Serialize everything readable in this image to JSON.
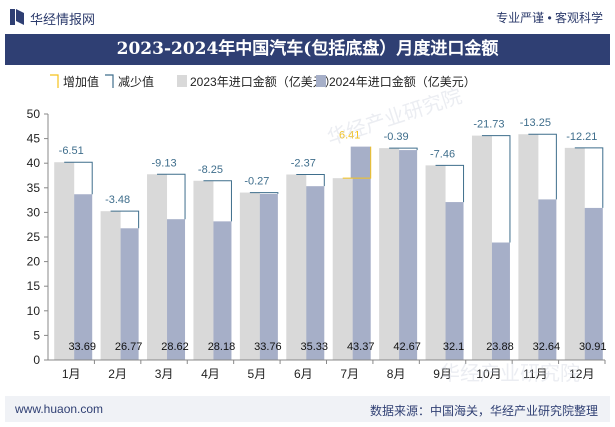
{
  "header": {
    "brand": "华经情报网",
    "tagline": "专业严谨 • 客观科学",
    "title": "2023-2024年中国汽车(包括底盘）月度进口金额"
  },
  "footer": {
    "url": "www.huaon.com",
    "source": "数据来源：中国海关，华经产业研究院整理"
  },
  "watermark": "华经产业研究院",
  "colors": {
    "bar2023": "#d9d9d9",
    "bar2024": "#a6afc8",
    "increase": "#f5c21b",
    "decrease": "#3f6e8c",
    "title_bg": "#2f3f73",
    "axis_text": "#222222"
  },
  "chart_data": {
    "type": "bar",
    "title": "2023-2024年中国汽车(包括底盘）月度进口金额",
    "categories": [
      "1月",
      "2月",
      "3月",
      "4月",
      "5月",
      "6月",
      "7月",
      "8月",
      "9月",
      "10月",
      "11月",
      "12月"
    ],
    "series": [
      {
        "name": "2023年进口金额（亿美元）",
        "values": [
          40.2,
          30.25,
          37.75,
          36.43,
          34.03,
          37.7,
          36.96,
          43.06,
          39.56,
          45.61,
          45.89,
          43.12
        ]
      },
      {
        "name": "2024年进口金额（亿美元）",
        "values": [
          33.69,
          26.77,
          28.62,
          28.18,
          33.76,
          35.33,
          43.37,
          42.67,
          32.1,
          23.88,
          32.64,
          30.91
        ]
      }
    ],
    "changes": [
      -6.51,
      -3.48,
      -9.13,
      -8.25,
      -0.27,
      -2.37,
      6.41,
      -0.39,
      -7.46,
      -21.73,
      -13.25,
      -12.21
    ],
    "change_labels": [
      "-6.51",
      "-3.48",
      "-9.13",
      "-8.25",
      "-0.27",
      "-2.37",
      "6.41",
      "-0.39",
      "-7.46",
      "-21.73",
      "-13.25",
      "-12.21"
    ],
    "value_labels_2024": [
      "33.69",
      "26.77",
      "28.62",
      "28.18",
      "33.76",
      "35.33",
      "43.37",
      "42.67",
      "32.1",
      "23.88",
      "32.64",
      "30.91"
    ],
    "legend": [
      "增加值",
      "减少值",
      "2023年进口金额（亿美元）",
      "2024年进口金额（亿美元）"
    ],
    "legend_position": "top",
    "ylim": [
      0,
      50
    ],
    "yticks": [
      "0",
      "5",
      "10",
      "15",
      "20",
      "25",
      "30",
      "35",
      "40",
      "45",
      "50"
    ],
    "grid": false
  }
}
